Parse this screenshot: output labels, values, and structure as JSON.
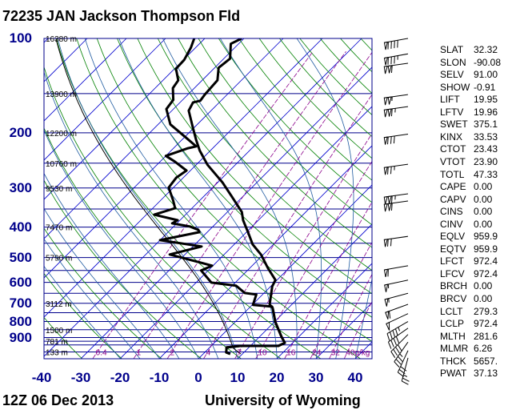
{
  "title": "72235 JAN Jackson Thompson Fld",
  "footer_left": "12Z 06 Dec 2013",
  "footer_right": "University of Wyoming",
  "colors": {
    "isobar": "#00008b",
    "isotherm": "#0000cd",
    "dry_adiabat": "#008000",
    "moist_adiabat": "#1e5aa0",
    "mixing_ratio": "#8b008b",
    "profile": "#000000"
  },
  "chart_data": {
    "type": "skew-t",
    "x_label_unit": "°C",
    "x_ticks": [
      -40,
      -30,
      -20,
      -10,
      0,
      10,
      20,
      30,
      40
    ],
    "y_ticks": [
      100,
      200,
      300,
      400,
      500,
      600,
      700,
      800,
      900
    ],
    "y_scale": "log",
    "ylim": [
      1050,
      100
    ],
    "isobars": [
      100,
      150,
      200,
      250,
      300,
      350,
      400,
      450,
      500,
      550,
      600,
      650,
      700,
      750,
      800,
      850,
      900,
      925,
      950,
      1000
    ],
    "height_labels": [
      {
        "p": 100,
        "text": "16380 m"
      },
      {
        "p": 150,
        "text": "13900 m"
      },
      {
        "p": 200,
        "text": "12200 m"
      },
      {
        "p": 250,
        "text": "10760 m"
      },
      {
        "p": 300,
        "text": "9530 m"
      },
      {
        "p": 400,
        "text": "7470 m"
      },
      {
        "p": 500,
        "text": "5790 m"
      },
      {
        "p": 700,
        "text": "3112 m"
      },
      {
        "p": 850,
        "text": "1500 m"
      },
      {
        "p": 925,
        "text": "781 m"
      },
      {
        "p": 1000,
        "text": "133 m"
      }
    ],
    "mixing_ratio_labels": [
      "0.4",
      "1",
      "2",
      "4",
      "7",
      "10",
      "16",
      "24",
      "32",
      "40g/kg"
    ],
    "mixing_ratio_values": [
      0.4,
      1,
      2,
      4,
      7,
      10,
      16,
      24,
      32,
      40
    ],
    "temperature": [
      [
        100,
        -70.6
      ],
      [
        104,
        -72.0
      ],
      [
        116,
        -68.4
      ],
      [
        121,
        -68.8
      ],
      [
        124,
        -69.0
      ],
      [
        136,
        -66.1
      ],
      [
        151,
        -65.7
      ],
      [
        158,
        -65.3
      ],
      [
        160,
        -66.7
      ],
      [
        170,
        -65.7
      ],
      [
        193,
        -60.2
      ],
      [
        211,
        -56.3
      ],
      [
        228,
        -52.7
      ],
      [
        253,
        -47.1
      ],
      [
        288,
        -38.8
      ],
      [
        319,
        -32.9
      ],
      [
        358,
        -26.3
      ],
      [
        380,
        -23.9
      ],
      [
        415,
        -19.6
      ],
      [
        454,
        -15.3
      ],
      [
        489,
        -10.6
      ],
      [
        541,
        -5.3
      ],
      [
        590,
        -0.4
      ],
      [
        618,
        0.4
      ],
      [
        705,
        4.3
      ],
      [
        726,
        6.1
      ],
      [
        802,
        10.2
      ],
      [
        893,
        15.5
      ],
      [
        936,
        18.0
      ],
      [
        957,
        17.1
      ],
      [
        957,
        7.3
      ],
      [
        968,
        4.3
      ],
      [
        1004,
        5.5
      ],
      [
        1015,
        6.9
      ]
    ],
    "dewpoint": [
      [
        100,
        -82.7
      ],
      [
        107,
        -81.2
      ],
      [
        117,
        -79.8
      ],
      [
        125,
        -79.6
      ],
      [
        136,
        -76.1
      ],
      [
        144,
        -75.5
      ],
      [
        157,
        -72.4
      ],
      [
        168,
        -71.8
      ],
      [
        188,
        -66.9
      ],
      [
        207,
        -59.6
      ],
      [
        221,
        -54.7
      ],
      [
        224,
        -56.3
      ],
      [
        237,
        -60.0
      ],
      [
        247,
        -56.3
      ],
      [
        264,
        -51.0
      ],
      [
        278,
        -51.8
      ],
      [
        299,
        -51.2
      ],
      [
        328,
        -46.9
      ],
      [
        348,
        -44.3
      ],
      [
        365,
        -48.0
      ],
      [
        380,
        -40.6
      ],
      [
        389,
        -41.2
      ],
      [
        398,
        -35.9
      ],
      [
        408,
        -32.9
      ],
      [
        415,
        -32.0
      ],
      [
        440,
        -40.0
      ],
      [
        461,
        -27.8
      ],
      [
        489,
        -33.9
      ],
      [
        495,
        -31.8
      ],
      [
        531,
        -20.2
      ],
      [
        550,
        -21.8
      ],
      [
        601,
        -16.1
      ],
      [
        615,
        -9.0
      ],
      [
        649,
        -4.9
      ],
      [
        656,
        -1.6
      ],
      [
        708,
        0.2
      ],
      [
        717,
        5.5
      ],
      [
        726,
        6.1
      ],
      [
        802,
        10.2
      ],
      [
        893,
        15.5
      ],
      [
        936,
        18.0
      ],
      [
        957,
        17.1
      ],
      [
        957,
        7.3
      ],
      [
        968,
        4.3
      ],
      [
        1004,
        5.5
      ],
      [
        1015,
        6.9
      ]
    ],
    "parcel": {
      "lcl_p": 972.4,
      "lcl_t_k": 279.3
    },
    "winds": [
      {
        "p": 100,
        "dir": 260,
        "kt": 90
      },
      {
        "p": 112,
        "dir": 260,
        "kt": 85
      },
      {
        "p": 120,
        "dir": 262,
        "kt": 110
      },
      {
        "p": 151,
        "dir": 262,
        "kt": 105
      },
      {
        "p": 165,
        "dir": 262,
        "kt": 115
      },
      {
        "p": 202,
        "dir": 262,
        "kt": 80
      },
      {
        "p": 252,
        "dir": 262,
        "kt": 75
      },
      {
        "p": 313,
        "dir": 262,
        "kt": 115
      },
      {
        "p": 330,
        "dir": 262,
        "kt": 110
      },
      {
        "p": 428,
        "dir": 262,
        "kt": 70
      },
      {
        "p": 531,
        "dir": 260,
        "kt": 60
      },
      {
        "p": 590,
        "dir": 258,
        "kt": 55
      },
      {
        "p": 650,
        "dir": 255,
        "kt": 55
      },
      {
        "p": 705,
        "dir": 250,
        "kt": 60
      },
      {
        "p": 755,
        "dir": 245,
        "kt": 50
      },
      {
        "p": 800,
        "dir": 240,
        "kt": 45
      },
      {
        "p": 840,
        "dir": 235,
        "kt": 40
      },
      {
        "p": 880,
        "dir": 225,
        "kt": 40
      },
      {
        "p": 930,
        "dir": 215,
        "kt": 35
      },
      {
        "p": 990,
        "dir": 205,
        "kt": 30
      },
      {
        "p": 1045,
        "dir": 195,
        "kt": 25
      }
    ]
  },
  "indices": [
    {
      "k": "SLAT",
      "v": "32.32"
    },
    {
      "k": "SLON",
      "v": "-90.08"
    },
    {
      "k": "SELV",
      "v": "91.00"
    },
    {
      "k": "SHOW",
      "v": "-0.91"
    },
    {
      "k": "LIFT",
      "v": "19.95"
    },
    {
      "k": "LFTV",
      "v": "19.96"
    },
    {
      "k": "SWET",
      "v": "375.1"
    },
    {
      "k": "KINX",
      "v": "33.53"
    },
    {
      "k": "CTOT",
      "v": "23.43"
    },
    {
      "k": "VTOT",
      "v": "23.90"
    },
    {
      "k": "TOTL",
      "v": "47.33"
    },
    {
      "k": "CAPE",
      "v": "0.00"
    },
    {
      "k": "CAPV",
      "v": "0.00"
    },
    {
      "k": "CINS",
      "v": "0.00"
    },
    {
      "k": "CINV",
      "v": "0.00"
    },
    {
      "k": "EQLV",
      "v": "959.9"
    },
    {
      "k": "EQTV",
      "v": "959.9"
    },
    {
      "k": "LFCT",
      "v": "972.4"
    },
    {
      "k": "LFCV",
      "v": "972.4"
    },
    {
      "k": "BRCH",
      "v": "0.00"
    },
    {
      "k": "BRCV",
      "v": "0.00"
    },
    {
      "k": "LCLT",
      "v": "279.3"
    },
    {
      "k": "LCLP",
      "v": "972.4"
    },
    {
      "k": "MLTH",
      "v": "281.6"
    },
    {
      "k": "MLMR",
      "v": "6.26"
    },
    {
      "k": "THCK",
      "v": "5657."
    },
    {
      "k": "PWAT",
      "v": "37.13"
    }
  ]
}
